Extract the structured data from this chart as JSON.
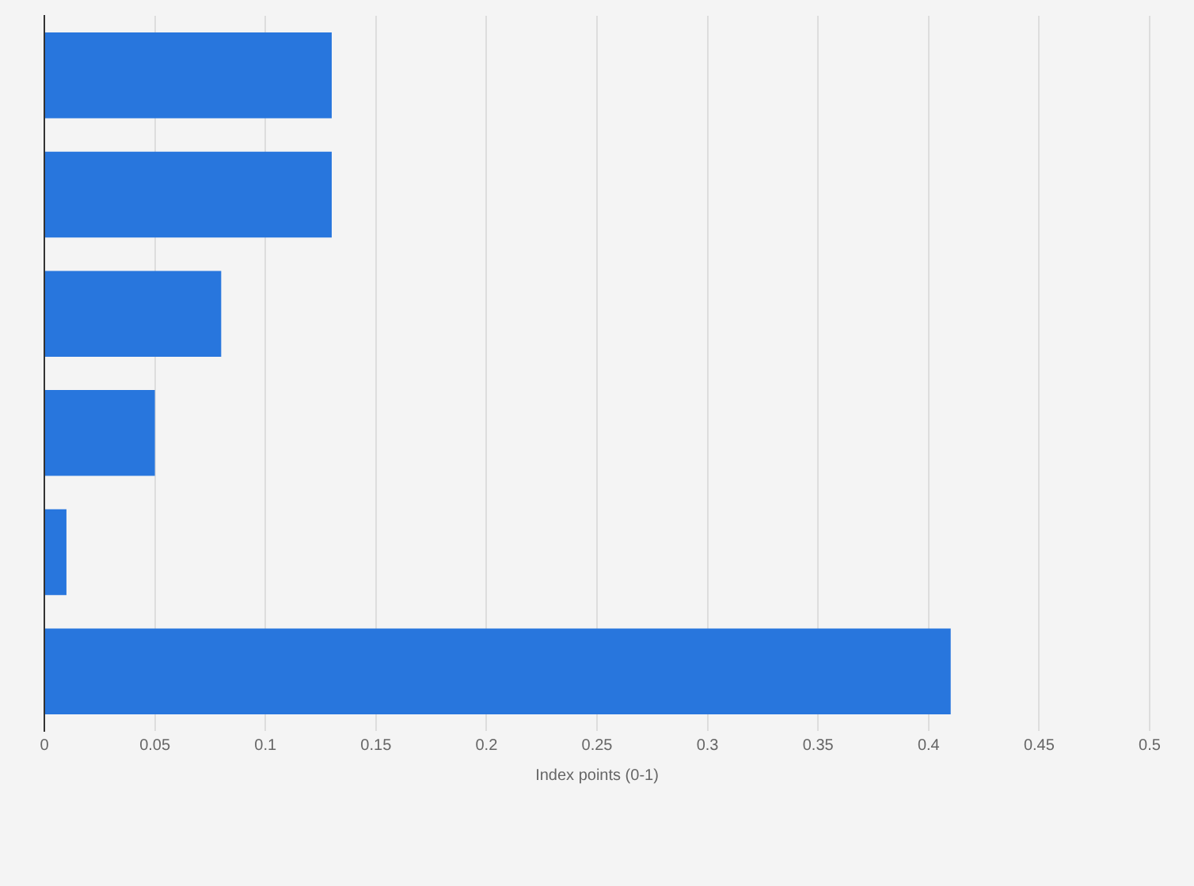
{
  "chart_data": {
    "type": "bar",
    "orientation": "horizontal",
    "categories": [
      null,
      null,
      null,
      null,
      null,
      null
    ],
    "values": [
      0.13,
      0.13,
      0.08,
      0.05,
      0.01,
      0.41
    ],
    "color": "#2876dd",
    "xlabel": "Index points (0-1)",
    "xlim": [
      0,
      0.5
    ],
    "xticks": [
      0,
      0.05,
      0.1,
      0.15,
      0.2,
      0.25,
      0.3,
      0.35,
      0.4,
      0.45,
      0.5
    ],
    "grid": "x"
  }
}
